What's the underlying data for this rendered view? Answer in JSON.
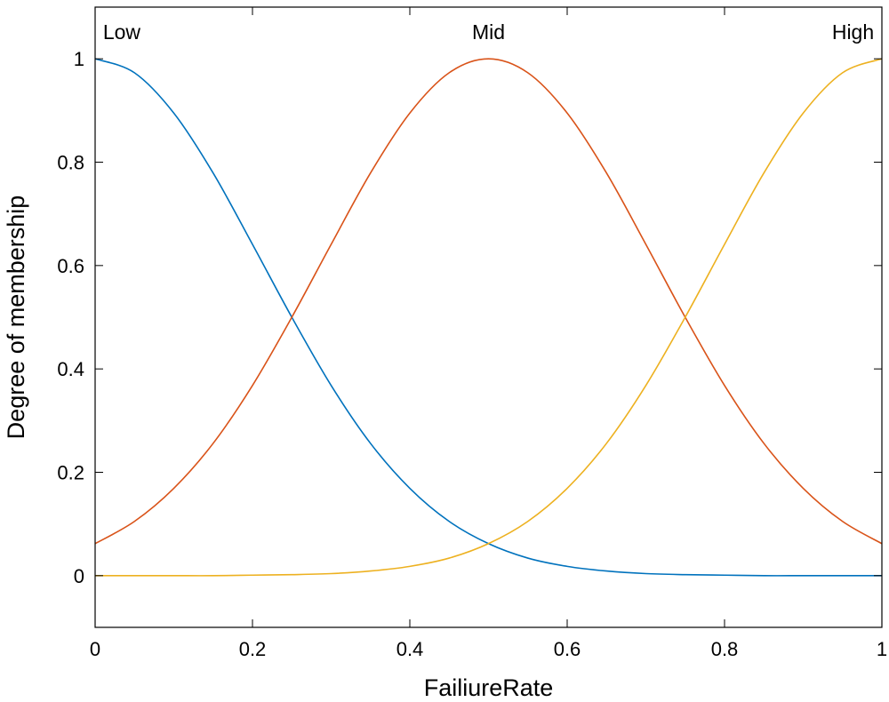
{
  "chart_data": {
    "type": "line",
    "title": "",
    "xlabel": "FailiureRate",
    "ylabel": "Degree of membership",
    "xlim": [
      0,
      1
    ],
    "ylim": [
      -0.1,
      1.1
    ],
    "grid": false,
    "x_ticks": [
      0,
      0.2,
      0.4,
      0.6,
      0.8,
      1
    ],
    "x_tick_labels": [
      "0",
      "0.2",
      "0.4",
      "0.6",
      "0.8",
      "1"
    ],
    "y_ticks": [
      0,
      0.2,
      0.4,
      0.6,
      0.8,
      1
    ],
    "y_tick_labels": [
      "0",
      "0.2",
      "0.4",
      "0.6",
      "0.8",
      "1"
    ],
    "x": [
      0,
      0.05,
      0.1,
      0.15,
      0.2,
      0.25,
      0.3,
      0.35,
      0.4,
      0.45,
      0.5,
      0.55,
      0.6,
      0.65,
      0.7,
      0.75,
      0.8,
      0.85,
      0.9,
      0.95,
      1
    ],
    "series": [
      {
        "name": "Low",
        "color": "#0072BD",
        "label_at": [
          0.01,
          1.052
        ],
        "label_anchor": "start",
        "values": [
          1.0,
          0.973,
          0.895,
          0.779,
          0.641,
          0.5,
          0.368,
          0.256,
          0.169,
          0.105,
          0.062,
          0.034,
          0.018,
          0.009,
          0.004,
          0.002,
          0.001,
          0.0,
          0.0,
          0.0,
          0.0
        ]
      },
      {
        "name": "Mid",
        "color": "#D95319",
        "label_at": [
          0.5,
          1.052
        ],
        "label_anchor": "middle",
        "values": [
          0.062,
          0.105,
          0.169,
          0.256,
          0.368,
          0.5,
          0.641,
          0.779,
          0.895,
          0.973,
          1.0,
          0.973,
          0.895,
          0.779,
          0.641,
          0.5,
          0.368,
          0.256,
          0.169,
          0.105,
          0.062
        ]
      },
      {
        "name": "High",
        "color": "#EDB120",
        "label_at": [
          0.99,
          1.052
        ],
        "label_anchor": "end",
        "values": [
          0.0,
          0.0,
          0.0,
          0.0,
          0.001,
          0.002,
          0.004,
          0.009,
          0.018,
          0.034,
          0.062,
          0.105,
          0.169,
          0.256,
          0.368,
          0.5,
          0.641,
          0.779,
          0.895,
          0.973,
          1.0
        ]
      }
    ]
  }
}
